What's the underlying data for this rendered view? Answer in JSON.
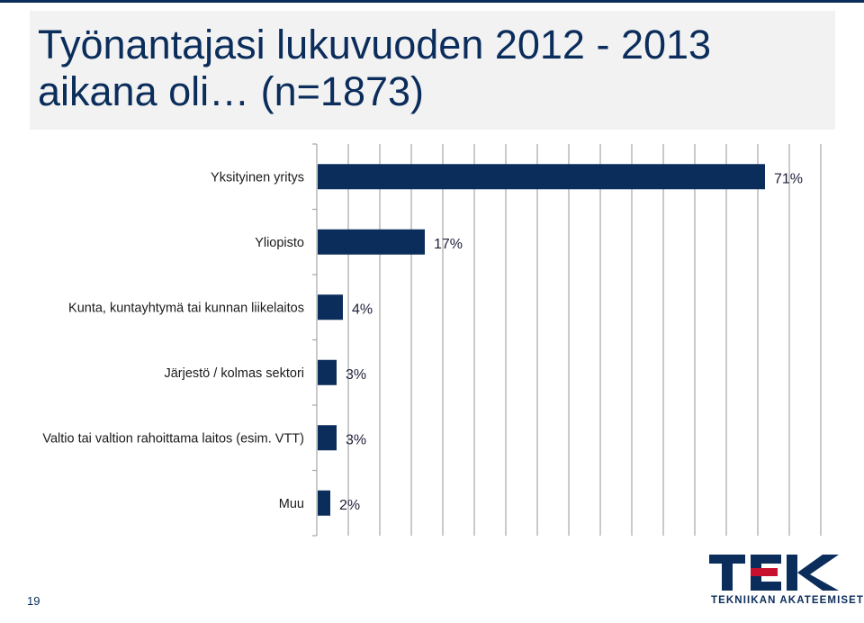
{
  "title": {
    "line1": "Työnantajasi lukuvuoden 2012 - 2013",
    "line2": "aikana oli… (n=1873)"
  },
  "page_number": "19",
  "logo": {
    "mark": "TEK",
    "subtitle": "TEKNIIKAN AKATEEMISET"
  },
  "colors": {
    "bar": "#0b2d5b",
    "accent": "#c8102e",
    "grid": "#a6a6a6",
    "title_bg": "#f2f2f2"
  },
  "chart_data": {
    "type": "bar",
    "orientation": "horizontal",
    "categories": [
      "Yksityinen yritys",
      "Yliopisto",
      "Kunta, kuntayhtymä tai kunnan liikelaitos",
      "Järjestö / kolmas sektori",
      "Valtio tai valtion rahoittama laitos (esim. VTT)",
      "Muu"
    ],
    "values": [
      71,
      17,
      4,
      3,
      3,
      2
    ],
    "data_labels": [
      "71%",
      "17%",
      "4%",
      "3%",
      "3%",
      "2%"
    ],
    "xlim": [
      0,
      80
    ],
    "gridlines": true,
    "legend": "none"
  }
}
